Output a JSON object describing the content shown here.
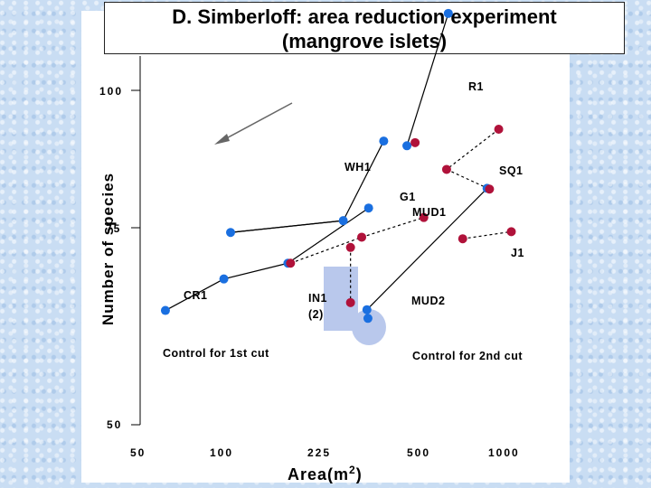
{
  "title": {
    "line1": "D. Simberloff: area reduction experiment",
    "line2": "(mangrove islets)"
  },
  "colors": {
    "blue": "#1a6fe0",
    "red": "#b0123a",
    "highlight": "#b9c8ec"
  },
  "chart_data": {
    "type": "scatter",
    "xlabel": "Area(m2)",
    "ylabel": "Number of species",
    "x_scale": "log",
    "x_ticks": [
      "50",
      "100",
      "225",
      "500",
      "1000"
    ],
    "y_ticks": [
      "50",
      "75",
      "100"
    ],
    "ylim": [
      50,
      103
    ],
    "xlim": [
      50,
      1350
    ],
    "series": [
      {
        "name": "Control for 1st cut",
        "color": "blue",
        "points": [
          {
            "x": 62,
            "y": 64.5
          },
          {
            "x": 102,
            "y": 68.5
          },
          {
            "x": 108,
            "y": 74.4
          },
          {
            "x": 176,
            "y": 70.5
          },
          {
            "x": 282,
            "y": 75.9
          },
          {
            "x": 350,
            "y": 77.5
          },
          {
            "x": 398,
            "y": 86.0
          },
          {
            "x": 485,
            "y": 85.4
          },
          {
            "x": 690,
            "y": 102.2
          },
          {
            "x": 960,
            "y": 80.0
          }
        ]
      },
      {
        "name": "Control for 2nd cut",
        "color": "blue",
        "points": [
          {
            "x": 345,
            "y": 64.6
          },
          {
            "x": 348,
            "y": 63.5
          }
        ]
      },
      {
        "name": "1st cut",
        "color": "red",
        "points": [
          {
            "x": 180,
            "y": 70.5
          },
          {
            "x": 300,
            "y": 72.5
          },
          {
            "x": 330,
            "y": 73.8
          },
          {
            "x": 520,
            "y": 85.8
          },
          {
            "x": 560,
            "y": 76.3
          },
          {
            "x": 680,
            "y": 82.4
          },
          {
            "x": 980,
            "y": 79.9
          }
        ]
      },
      {
        "name": "2nd cut",
        "color": "red",
        "points": [
          {
            "x": 300,
            "y": 65.5
          },
          {
            "x": 780,
            "y": 73.6
          },
          {
            "x": 1060,
            "y": 87.5
          },
          {
            "x": 1180,
            "y": 74.5
          }
        ]
      }
    ],
    "annotations": [
      "R1",
      "WH1",
      "SQ1",
      "G1",
      "MUD1",
      "J1",
      "CR1",
      "IN1",
      "(2)",
      "MUD2",
      "Control for 1st cut",
      "Control for 2nd cut"
    ]
  },
  "labels": {
    "R1": "R1",
    "WH1": "WH1",
    "SQ1": "SQ1",
    "G1": "G1",
    "MUD1": "MUD1",
    "J1": "J1",
    "CR1": "CR1",
    "IN1": "IN1",
    "IN1_sub": "(2)",
    "MUD2": "MUD2",
    "control1": "Control for 1st cut",
    "control2": "Control for 2nd cut"
  },
  "axis": {
    "ylabel": "Number of species",
    "xlabel_main": "Area(m",
    "xlabel_sup": "2",
    "xlabel_end": ")",
    "yticks": [
      "100",
      "75",
      "50"
    ],
    "xticks": [
      "50",
      "100",
      "225",
      "500",
      "1000"
    ]
  }
}
